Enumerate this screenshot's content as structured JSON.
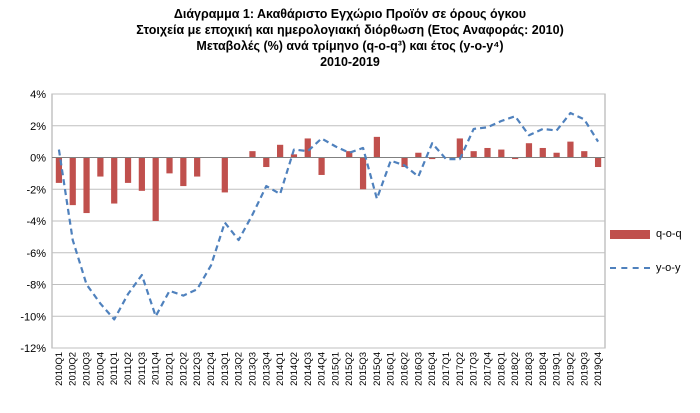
{
  "title_lines": [
    "Διάγραμμα 1: Ακαθάριστο Εγχώριο Προϊόν σε όρους όγκου",
    "Στοιχεία με εποχική και ημερολογιακή διόρθωση (Ετος Αναφοράς: 2010)",
    "Μεταβολές (%) ανά τρίμηνο (q-o-q³) και έτος (y-o-y⁴)",
    "2010-2019"
  ],
  "chart_data": {
    "type": "bar",
    "title": "Διάγραμμα 1: Ακαθάριστο Εγχώριο Προϊόν σε όρους όγκου",
    "subtitle": "Στοιχεία με εποχική και ημερολογιακή διόρθωση (Ετος Αναφοράς: 2010) / Μεταβολές (%) ανά τρίμηνο (q-o-q³) και έτος (y-o-y⁴) / 2010-2019",
    "ylim": [
      -12,
      4
    ],
    "y_ticks": [
      "4%",
      "2%",
      "0%",
      "-2%",
      "-4%",
      "-6%",
      "-8%",
      "-10%",
      "-12%"
    ],
    "y_tick_values": [
      4,
      2,
      0,
      -2,
      -4,
      -6,
      -8,
      -10,
      -12
    ],
    "grid": true,
    "legend_position": "right",
    "categories": [
      "2010Q1",
      "2010Q2",
      "2010Q3",
      "2010Q4",
      "2011Q1",
      "2011Q2",
      "2011Q3",
      "2011Q4",
      "2012Q1",
      "2012Q2",
      "2012Q3",
      "2012Q4",
      "2013Q1",
      "2013Q2",
      "2013Q3",
      "2013Q4",
      "2014Q1",
      "2014Q2",
      "2014Q3",
      "2014Q4",
      "2015Q1",
      "2015Q2",
      "2015Q3",
      "2015Q4",
      "2016Q1",
      "2016Q2",
      "2016Q3",
      "2016Q4",
      "2017Q1",
      "2017Q2",
      "2017Q3",
      "2017Q4",
      "2018Q1",
      "2018Q2",
      "2018Q3",
      "2018Q4",
      "2019Q1",
      "2019Q2",
      "2019Q3",
      "2019Q4"
    ],
    "series": [
      {
        "name": "q-o-q",
        "type": "bar",
        "color": "#c0504d",
        "values": [
          -1.6,
          -3.0,
          -3.5,
          -1.2,
          -2.9,
          -1.6,
          -2.1,
          -4.0,
          -1.0,
          -1.8,
          -1.2,
          0.0,
          -2.2,
          0.0,
          0.4,
          -0.6,
          0.8,
          0.2,
          1.2,
          -1.1,
          0.0,
          0.4,
          -2.0,
          1.3,
          0.0,
          -0.6,
          0.3,
          -0.1,
          0.0,
          1.2,
          0.4,
          0.6,
          0.5,
          -0.1,
          0.9,
          0.6,
          0.3,
          1.0,
          0.4,
          -0.6
        ]
      },
      {
        "name": "y-o-y",
        "type": "line",
        "color": "#4f81bd",
        "dash": "dashed",
        "values": [
          0.5,
          -5.2,
          -8.0,
          -9.2,
          -10.2,
          -8.6,
          -7.4,
          -10.0,
          -8.4,
          -8.7,
          -8.3,
          -6.8,
          -4.1,
          -5.2,
          -3.6,
          -1.8,
          -2.3,
          0.5,
          0.4,
          1.2,
          0.7,
          0.3,
          0.6,
          -2.6,
          -0.2,
          -0.5,
          -1.2,
          0.9,
          -0.1,
          -0.1,
          1.8,
          1.9,
          2.3,
          2.6,
          1.4,
          1.8,
          1.7,
          2.8,
          2.4,
          1.0
        ]
      }
    ]
  },
  "legend": {
    "qoq_label": "q-o-q",
    "yoy_label": "y-o-y"
  }
}
